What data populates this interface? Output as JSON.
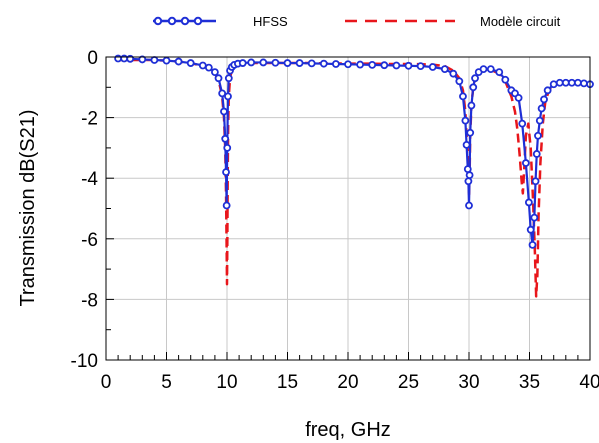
{
  "chart_data": {
    "type": "line",
    "xlabel": "freq, GHz",
    "ylabel": "Transmission dB(S21)",
    "xlim": [
      0,
      40
    ],
    "ylim": [
      -10,
      0
    ],
    "x_ticks": [
      0,
      5,
      10,
      15,
      20,
      25,
      30,
      35,
      40
    ],
    "y_ticks": [
      0,
      -2,
      -4,
      -6,
      -8,
      -10
    ],
    "x_tick_labels": [
      "0",
      "5",
      "10",
      "15",
      "20",
      "25",
      "30",
      "35",
      "40"
    ],
    "y_tick_labels": [
      "0",
      "-2",
      "-4",
      "-6",
      "-8",
      "-10"
    ],
    "grid": true,
    "legend_position": "top",
    "series": [
      {
        "name": "HFSS",
        "color": "#1f2fd6",
        "style": "solid-circle-markers",
        "x": [
          1,
          1.5,
          2,
          3,
          4,
          5,
          6,
          7,
          8,
          8.5,
          9,
          9.3,
          9.6,
          9.75,
          9.85,
          9.92,
          9.97,
          10.02,
          10.08,
          10.15,
          10.25,
          10.4,
          10.6,
          10.9,
          11.3,
          12,
          13,
          14,
          15,
          16,
          17,
          18,
          19,
          20,
          21,
          22,
          23,
          24,
          25,
          26,
          27,
          28,
          28.7,
          29.2,
          29.5,
          29.7,
          29.8,
          29.9,
          29.95,
          30.0,
          30.05,
          30.1,
          30.2,
          30.35,
          30.5,
          30.8,
          31.2,
          31.8,
          32.5,
          33.0,
          33.5,
          33.8,
          34.1,
          34.4,
          34.7,
          34.95,
          35.1,
          35.25,
          35.4,
          35.5,
          35.6,
          35.7,
          35.85,
          36.0,
          36.2,
          36.5,
          37.0,
          37.5,
          38.0,
          38.5,
          39.0,
          39.5,
          40.0
        ],
        "y": [
          -0.05,
          -0.05,
          -0.06,
          -0.08,
          -0.1,
          -0.12,
          -0.15,
          -0.2,
          -0.28,
          -0.35,
          -0.5,
          -0.7,
          -1.2,
          -1.8,
          -2.7,
          -3.8,
          -4.9,
          -3.0,
          -1.3,
          -0.7,
          -0.45,
          -0.33,
          -0.26,
          -0.22,
          -0.2,
          -0.18,
          -0.18,
          -0.19,
          -0.2,
          -0.2,
          -0.21,
          -0.22,
          -0.23,
          -0.24,
          -0.25,
          -0.26,
          -0.27,
          -0.28,
          -0.29,
          -0.3,
          -0.33,
          -0.4,
          -0.55,
          -0.8,
          -1.3,
          -2.1,
          -2.9,
          -3.7,
          -4.1,
          -4.9,
          -3.9,
          -2.5,
          -1.6,
          -1.0,
          -0.7,
          -0.5,
          -0.4,
          -0.4,
          -0.5,
          -0.75,
          -1.1,
          -1.2,
          -1.35,
          -2.2,
          -3.5,
          -4.8,
          -5.7,
          -6.2,
          -5.3,
          -4.1,
          -3.2,
          -2.6,
          -2.1,
          -1.7,
          -1.4,
          -1.1,
          -0.9,
          -0.85,
          -0.85,
          -0.85,
          -0.85,
          -0.87,
          -0.9
        ]
      },
      {
        "name": "Modèle circuit",
        "color": "#e8161b",
        "style": "dashed",
        "x": [
          1,
          2,
          3,
          4,
          5,
          6,
          7,
          8,
          8.5,
          9,
          9.3,
          9.6,
          9.75,
          9.85,
          9.92,
          9.97,
          10.0,
          10.03,
          10.06,
          10.1,
          10.15,
          10.25,
          10.4,
          10.6,
          10.9,
          11.3,
          12,
          13,
          14,
          15,
          16,
          17,
          18,
          19,
          20,
          21,
          22,
          23,
          24,
          25,
          26,
          27,
          28,
          28.7,
          29.2,
          29.5,
          29.7,
          29.8,
          29.9,
          29.95,
          30.0,
          30.05,
          30.1,
          30.2,
          30.35,
          30.5,
          30.8,
          31.2,
          31.8,
          32.5,
          33.0,
          33.5,
          33.8,
          34.0,
          34.2,
          34.35,
          34.45,
          34.55,
          34.7,
          34.9,
          35.1,
          35.3,
          35.45,
          35.55,
          35.65,
          35.75,
          35.9,
          36.1,
          36.3,
          36.6,
          37.0,
          37.5,
          38.0,
          38.5,
          39.0,
          39.5,
          40.0
        ],
        "y": [
          -0.1,
          -0.1,
          -0.1,
          -0.1,
          -0.12,
          -0.15,
          -0.2,
          -0.3,
          -0.38,
          -0.55,
          -0.75,
          -1.3,
          -2.0,
          -3.0,
          -4.5,
          -6.3,
          -7.5,
          -6.0,
          -3.8,
          -2.2,
          -1.3,
          -0.7,
          -0.42,
          -0.3,
          -0.24,
          -0.21,
          -0.2,
          -0.2,
          -0.2,
          -0.2,
          -0.2,
          -0.2,
          -0.21,
          -0.21,
          -0.22,
          -0.22,
          -0.22,
          -0.23,
          -0.23,
          -0.23,
          -0.24,
          -0.25,
          -0.3,
          -0.45,
          -0.7,
          -1.1,
          -1.8,
          -2.6,
          -3.3,
          -3.8,
          -4.6,
          -3.9,
          -2.6,
          -1.6,
          -1.0,
          -0.7,
          -0.5,
          -0.4,
          -0.42,
          -0.55,
          -0.8,
          -1.3,
          -1.8,
          -2.4,
          -3.3,
          -4.1,
          -4.5,
          -3.8,
          -2.6,
          -2.2,
          -3.0,
          -4.8,
          -6.5,
          -7.9,
          -7.2,
          -5.2,
          -3.5,
          -2.2,
          -1.5,
          -1.1,
          -0.9,
          -0.8,
          -0.8,
          -0.8,
          -0.82,
          -0.85,
          -0.9
        ]
      }
    ]
  }
}
